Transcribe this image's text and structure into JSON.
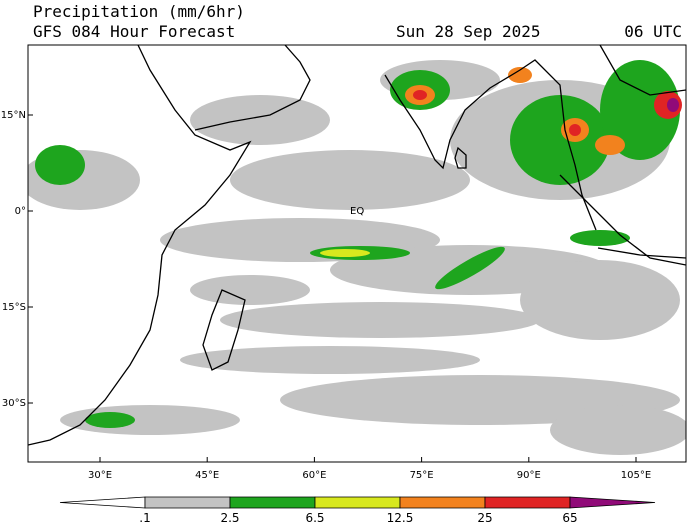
{
  "header": {
    "title": "Precipitation (mm/6hr)",
    "subtitle": "GFS 084 Hour Forecast",
    "date": "Sun 28 Sep 2025",
    "time": "06 UTC"
  },
  "map": {
    "lat_labels": [
      "15°N",
      "0°",
      "15°S",
      "30°S"
    ],
    "lon_labels": [
      "30°E",
      "45°E",
      "60°E",
      "75°E",
      "90°E",
      "105°E"
    ],
    "annotation": "EQ"
  },
  "colorbar": {
    "labels": [
      ".1",
      "2.5",
      "6.5",
      "12.5",
      "25",
      "65"
    ],
    "colors": [
      "#ffffff",
      "#c3c3c3",
      "#1ea51e",
      "#d8e81e",
      "#f2821e",
      "#e02424",
      "#900a78"
    ]
  }
}
